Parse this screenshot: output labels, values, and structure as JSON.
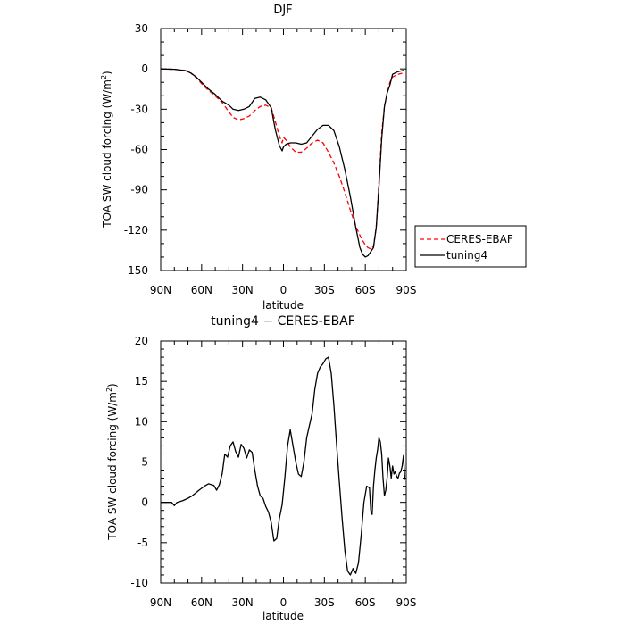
{
  "chart_data": [
    {
      "type": "line",
      "title": "DJF",
      "xlabel": "latitude",
      "ylabel_main": "TOA SW cloud forcing (W/m",
      "ylabel_sup": "2",
      "ylabel_close": ")",
      "x_ticks": [
        "90N",
        "60N",
        "30N",
        "0",
        "30S",
        "60S",
        "90S"
      ],
      "x_range": [
        90,
        -90
      ],
      "ylim": [
        -150,
        30
      ],
      "y_ticks": [
        30,
        0,
        -30,
        -60,
        -90,
        -120,
        -150
      ],
      "legend_position": "right",
      "series": [
        {
          "name": "CERES-EBAF",
          "color": "#ff0000",
          "dash": true,
          "x": [
            90,
            80,
            72,
            68,
            64,
            60,
            55,
            50,
            45,
            40,
            37,
            33,
            29,
            25,
            21,
            17,
            13,
            9,
            6,
            3,
            1,
            0,
            -2,
            -5,
            -9,
            -13,
            -17,
            -21,
            -25,
            -29,
            -33,
            -37,
            -41,
            -45,
            -49,
            -53,
            -57,
            -60,
            -62,
            -64,
            -66,
            -68,
            -70,
            -72,
            -74,
            -76,
            -78,
            -80,
            -84,
            -88
          ],
          "y": [
            0,
            -0.3,
            -1.2,
            -3,
            -6.5,
            -11,
            -16,
            -20,
            -25,
            -32,
            -36,
            -38,
            -37,
            -35,
            -31,
            -28,
            -27,
            -29,
            -39,
            -50,
            -55,
            -51,
            -53,
            -58,
            -62,
            -62,
            -59,
            -55,
            -53,
            -55,
            -62,
            -70,
            -80,
            -92,
            -105,
            -117,
            -126,
            -131,
            -133,
            -134,
            -132,
            -118,
            -85,
            -48,
            -28,
            -18,
            -10,
            -6,
            -4,
            -3
          ]
        },
        {
          "name": "tuning4",
          "color": "#000000",
          "dash": false,
          "x": [
            90,
            80,
            72,
            68,
            64,
            60,
            55,
            50,
            45,
            40,
            37,
            33,
            29,
            25,
            21,
            17,
            13,
            9,
            6,
            3,
            1,
            0,
            -2,
            -5,
            -9,
            -13,
            -17,
            -21,
            -25,
            -29,
            -33,
            -37,
            -41,
            -45,
            -49,
            -53,
            -56,
            -58,
            -60,
            -62,
            -64,
            -66,
            -68,
            -70,
            -72,
            -74,
            -76,
            -78,
            -80,
            -84,
            -88
          ],
          "y": [
            0,
            -0.3,
            -1.2,
            -3,
            -6,
            -10,
            -15,
            -19,
            -24,
            -27,
            -30,
            -31,
            -30,
            -28,
            -22,
            -21,
            -23,
            -29,
            -45,
            -57,
            -61,
            -58,
            -56,
            -55,
            -55,
            -56,
            -55,
            -50,
            -45,
            -42,
            -42,
            -46,
            -58,
            -75,
            -95,
            -118,
            -133,
            -138,
            -140,
            -139,
            -136,
            -133,
            -118,
            -88,
            -52,
            -28,
            -18,
            -12,
            -4,
            -2,
            -1
          ]
        }
      ]
    },
    {
      "type": "line",
      "title": "tuning4 − CERES-EBAF",
      "xlabel": "latitude",
      "ylabel_main": "TOA SW cloud forcing (W/m",
      "ylabel_sup": "2",
      "ylabel_close": ")",
      "x_ticks": [
        "90N",
        "60N",
        "30N",
        "0",
        "30S",
        "60S",
        "90S"
      ],
      "x_range": [
        90,
        -90
      ],
      "ylim": [
        -10,
        20
      ],
      "y_ticks": [
        20,
        15,
        10,
        5,
        0,
        -5,
        -10
      ],
      "series": [
        {
          "color": "#000000",
          "x": [
            90,
            86,
            82,
            80,
            78,
            74,
            70,
            67,
            64,
            62,
            58,
            55,
            53,
            51,
            49,
            47,
            45,
            43,
            41,
            39,
            37,
            35,
            33,
            31,
            29,
            27,
            25,
            23,
            21,
            19,
            17,
            15,
            13,
            11,
            9,
            7,
            5,
            3,
            1,
            -1,
            -3,
            -5,
            -7,
            -9,
            -11,
            -13,
            -15,
            -17,
            -19,
            -21,
            -23,
            -25,
            -27,
            -29,
            -31,
            -33,
            -35,
            -37,
            -39,
            -41,
            -43,
            -45,
            -47,
            -49,
            -51,
            -53,
            -55,
            -57,
            -59,
            -61,
            -63,
            -64,
            -65,
            -66,
            -67,
            -68,
            -69,
            -70,
            -71,
            -72,
            -73,
            -74,
            -75,
            -76,
            -77,
            -78,
            -79,
            -80,
            -81,
            -82,
            -83,
            -84,
            -85,
            -86,
            -87,
            -88,
            -89
          ],
          "y": [
            0,
            0,
            0,
            -0.4,
            0,
            0.2,
            0.5,
            0.8,
            1.2,
            1.5,
            2.0,
            2.3,
            2.2,
            2.1,
            1.5,
            2.2,
            3.5,
            6.0,
            5.6,
            7.0,
            7.5,
            6.3,
            5.6,
            7.2,
            6.7,
            5.5,
            6.5,
            6.2,
            4.0,
            2.0,
            0.8,
            0.5,
            -0.5,
            -1.2,
            -2.5,
            -4.8,
            -4.5,
            -2.0,
            -0.3,
            3.0,
            7.0,
            9.0,
            7.0,
            5.0,
            3.5,
            3.2,
            5.0,
            8.0,
            9.5,
            11.0,
            14.0,
            16.0,
            16.8,
            17.2,
            17.8,
            18.0,
            16.0,
            12.0,
            7.0,
            2.5,
            -2.0,
            -6.0,
            -8.5,
            -9.0,
            -8.2,
            -8.8,
            -7.5,
            -4.0,
            0,
            2.0,
            1.8,
            -1.0,
            -1.5,
            2.0,
            4.0,
            5.5,
            6.5,
            8.0,
            7.5,
            6.0,
            3.0,
            0.8,
            1.5,
            3.0,
            5.5,
            4.5,
            3.0,
            4.5,
            3.5,
            3.8,
            3.2,
            3.0,
            3.6,
            3.8,
            4.5,
            5.8,
            2.8
          ]
        }
      ]
    }
  ]
}
